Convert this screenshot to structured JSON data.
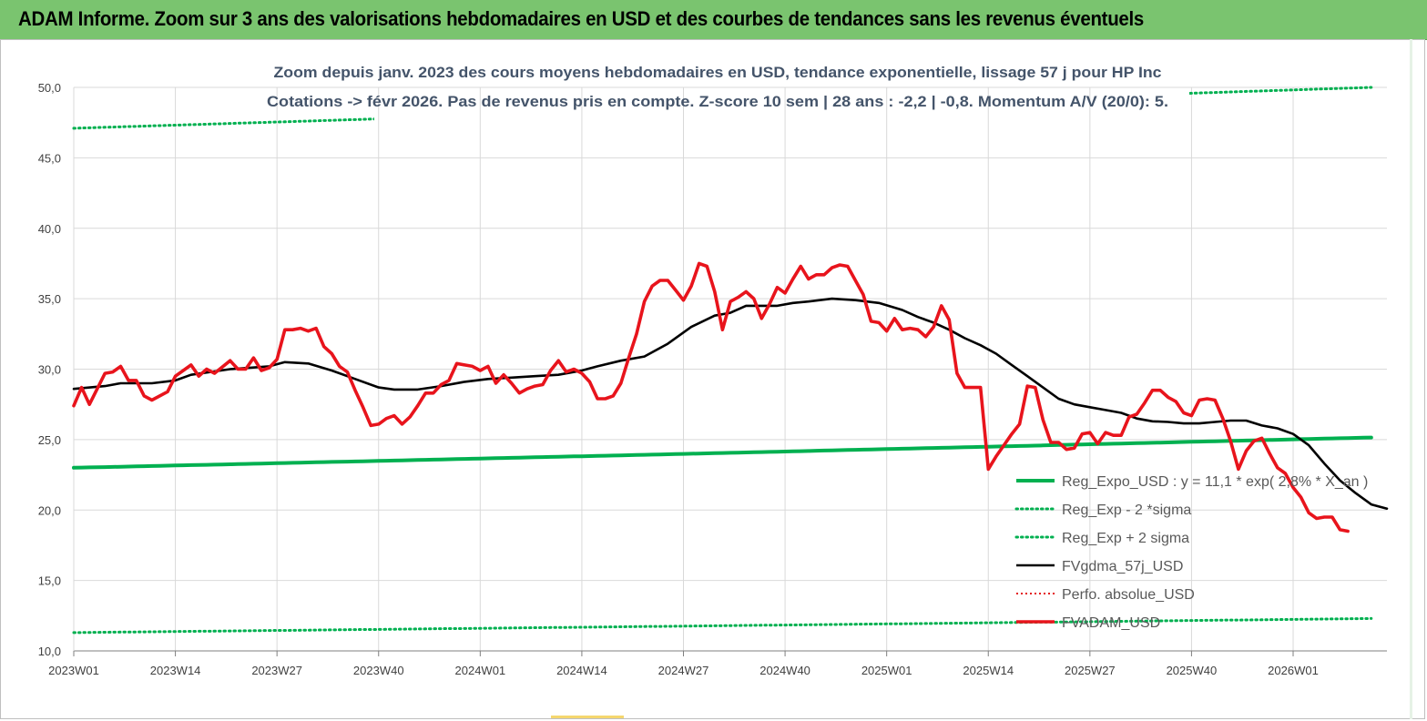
{
  "header": {
    "title": "ADAM Informe. Zoom sur 3 ans des valorisations hebdomadaires en USD et des courbes de tendances sans les revenus éventuels"
  },
  "colors": {
    "header_bg": "#7ac46f",
    "reg_expo": "#00b050",
    "sigma": "#00b050",
    "fvgdma": "#000000",
    "perfo": "#e41a1c",
    "fvadam": "#e8141c",
    "subtitle": "#44546a"
  },
  "chart_data": {
    "type": "line",
    "title_line1": "Zoom depuis janv. 2023 des cours moyens hebdomadaires en USD, tendance exponentielle, lissage 57 j pour HP Inc",
    "title_line2": "Cotations -> févr 2026.  Pas de revenus pris en compte. Z-score 10 sem  | 28 ans : -2,2 | -0,8. Momentum A/V (20/0): 5.",
    "ylim": [
      10,
      50
    ],
    "grid": true,
    "legend_position": "right",
    "y_ticks": [
      "10,0",
      "15,0",
      "20,0",
      "25,0",
      "30,0",
      "35,0",
      "40,0",
      "45,0",
      "50,0"
    ],
    "x_ticks": [
      "2023W01",
      "2023W14",
      "2023W27",
      "2023W40",
      "2024W01",
      "2024W14",
      "2024W27",
      "2024W40",
      "2025W01",
      "2025W14",
      "2025W27",
      "2025W40",
      "2026W01"
    ],
    "x_week_start": 0,
    "series": [
      {
        "name": "Reg_Expo_USD : y = 11,1 * exp( 2,8% * X_an )",
        "style": "solid-thick",
        "points": [
          [
            0,
            23.0
          ],
          [
            166,
            25.15
          ]
        ]
      },
      {
        "name": "Reg_Exp - 2 *sigma",
        "style": "dotted",
        "points": [
          [
            0,
            11.3
          ],
          [
            166,
            12.3
          ]
        ]
      },
      {
        "name": "Reg_Exp + 2 sigma",
        "style": "dotted",
        "points": [
          [
            0,
            47.1
          ],
          [
            166,
            50.0
          ]
        ]
      },
      {
        "name": "FVgdma_57j_USD",
        "style": "solid",
        "points": [
          [
            0,
            28.6
          ],
          [
            4,
            28.8
          ],
          [
            6,
            29.0
          ],
          [
            10,
            29.0
          ],
          [
            13,
            29.2
          ],
          [
            15,
            29.6
          ],
          [
            20,
            30.0
          ],
          [
            25,
            30.2
          ],
          [
            27,
            30.5
          ],
          [
            30,
            30.4
          ],
          [
            33,
            29.9
          ],
          [
            36,
            29.3
          ],
          [
            39,
            28.7
          ],
          [
            41,
            28.55
          ],
          [
            44,
            28.55
          ],
          [
            47,
            28.8
          ],
          [
            50,
            29.1
          ],
          [
            53,
            29.3
          ],
          [
            56,
            29.4
          ],
          [
            59,
            29.5
          ],
          [
            62,
            29.6
          ],
          [
            65,
            29.9
          ],
          [
            67,
            30.2
          ],
          [
            70,
            30.6
          ],
          [
            73,
            30.9
          ],
          [
            76,
            31.8
          ],
          [
            79,
            33.0
          ],
          [
            82,
            33.8
          ],
          [
            84,
            34.0
          ],
          [
            86,
            34.5
          ],
          [
            88,
            34.5
          ],
          [
            90,
            34.5
          ],
          [
            92,
            34.7
          ],
          [
            94,
            34.8
          ],
          [
            97,
            35.0
          ],
          [
            100,
            34.9
          ],
          [
            103,
            34.7
          ],
          [
            106,
            34.2
          ],
          [
            108,
            33.7
          ],
          [
            110,
            33.3
          ],
          [
            112,
            32.8
          ],
          [
            114,
            32.2
          ],
          [
            116,
            31.7
          ],
          [
            118,
            31.1
          ],
          [
            120,
            30.3
          ],
          [
            122,
            29.5
          ],
          [
            124,
            28.7
          ],
          [
            126,
            27.9
          ],
          [
            128,
            27.5
          ],
          [
            130,
            27.3
          ],
          [
            132,
            27.1
          ],
          [
            134,
            26.9
          ],
          [
            136,
            26.5
          ],
          [
            138,
            26.3
          ],
          [
            140,
            26.25
          ],
          [
            142,
            26.15
          ],
          [
            144,
            26.15
          ],
          [
            146,
            26.25
          ],
          [
            148,
            26.35
          ],
          [
            150,
            26.35
          ],
          [
            152,
            26.0
          ],
          [
            154,
            25.8
          ],
          [
            156,
            25.4
          ],
          [
            158,
            24.6
          ],
          [
            160,
            23.3
          ],
          [
            162,
            22.1
          ],
          [
            164,
            21.2
          ],
          [
            166,
            20.4
          ],
          [
            168,
            20.1
          ]
        ]
      },
      {
        "name": "Perfo. absolue_USD",
        "style": "dotted",
        "points": []
      },
      {
        "name": "FVADAM_USD",
        "style": "solid-thick",
        "points": [
          [
            0,
            27.4
          ],
          [
            1,
            28.7
          ],
          [
            2,
            27.5
          ],
          [
            4,
            29.7
          ],
          [
            5,
            29.8
          ],
          [
            6,
            30.2
          ],
          [
            7,
            29.2
          ],
          [
            8,
            29.2
          ],
          [
            9,
            28.1
          ],
          [
            10,
            27.8
          ],
          [
            12,
            28.4
          ],
          [
            13,
            29.5
          ],
          [
            15,
            30.3
          ],
          [
            16,
            29.5
          ],
          [
            17,
            30.0
          ],
          [
            18,
            29.7
          ],
          [
            20,
            30.6
          ],
          [
            21,
            30.0
          ],
          [
            22,
            30.0
          ],
          [
            23,
            30.8
          ],
          [
            24,
            29.9
          ],
          [
            25,
            30.1
          ],
          [
            26,
            30.7
          ],
          [
            27,
            32.8
          ],
          [
            28,
            32.8
          ],
          [
            29,
            32.9
          ],
          [
            30,
            32.7
          ],
          [
            31,
            32.9
          ],
          [
            32,
            31.6
          ],
          [
            33,
            31.1
          ],
          [
            34,
            30.2
          ],
          [
            35,
            29.8
          ],
          [
            36,
            28.5
          ],
          [
            37,
            27.3
          ],
          [
            38,
            26.0
          ],
          [
            39,
            26.1
          ],
          [
            40,
            26.5
          ],
          [
            41,
            26.7
          ],
          [
            42,
            26.1
          ],
          [
            43,
            26.6
          ],
          [
            44,
            27.4
          ],
          [
            45,
            28.3
          ],
          [
            46,
            28.3
          ],
          [
            47,
            28.9
          ],
          [
            48,
            29.2
          ],
          [
            49,
            30.4
          ],
          [
            50,
            30.3
          ],
          [
            51,
            30.2
          ],
          [
            52,
            29.9
          ],
          [
            53,
            30.2
          ],
          [
            54,
            29.0
          ],
          [
            55,
            29.6
          ],
          [
            56,
            29.0
          ],
          [
            57,
            28.3
          ],
          [
            58,
            28.6
          ],
          [
            59,
            28.8
          ],
          [
            60,
            28.9
          ],
          [
            61,
            29.9
          ],
          [
            62,
            30.6
          ],
          [
            63,
            29.8
          ],
          [
            64,
            30.0
          ],
          [
            65,
            29.7
          ],
          [
            66,
            29.1
          ],
          [
            67,
            27.9
          ],
          [
            68,
            27.9
          ],
          [
            69,
            28.1
          ],
          [
            70,
            29.0
          ],
          [
            71,
            30.8
          ],
          [
            72,
            32.5
          ],
          [
            73,
            34.8
          ],
          [
            74,
            35.9
          ],
          [
            75,
            36.3
          ],
          [
            76,
            36.3
          ],
          [
            77,
            35.6
          ],
          [
            78,
            34.9
          ],
          [
            79,
            35.9
          ],
          [
            80,
            37.5
          ],
          [
            81,
            37.3
          ],
          [
            82,
            35.5
          ],
          [
            83,
            32.8
          ],
          [
            84,
            34.8
          ],
          [
            85,
            35.1
          ],
          [
            86,
            35.5
          ],
          [
            87,
            35.0
          ],
          [
            88,
            33.6
          ],
          [
            89,
            34.6
          ],
          [
            90,
            35.8
          ],
          [
            91,
            35.4
          ],
          [
            92,
            36.4
          ],
          [
            93,
            37.3
          ],
          [
            94,
            36.4
          ],
          [
            95,
            36.7
          ],
          [
            96,
            36.7
          ],
          [
            97,
            37.2
          ],
          [
            98,
            37.4
          ],
          [
            99,
            37.3
          ],
          [
            100,
            36.3
          ],
          [
            101,
            35.3
          ],
          [
            102,
            33.4
          ],
          [
            103,
            33.3
          ],
          [
            104,
            32.7
          ],
          [
            105,
            33.6
          ],
          [
            106,
            32.8
          ],
          [
            107,
            32.9
          ],
          [
            108,
            32.8
          ],
          [
            109,
            32.3
          ],
          [
            110,
            33.0
          ],
          [
            111,
            34.5
          ],
          [
            112,
            33.5
          ],
          [
            113,
            29.7
          ],
          [
            114,
            28.7
          ],
          [
            115,
            28.7
          ],
          [
            116,
            28.7
          ],
          [
            117,
            22.9
          ],
          [
            118,
            23.8
          ],
          [
            119,
            24.6
          ],
          [
            120,
            25.4
          ],
          [
            121,
            26.1
          ],
          [
            122,
            28.8
          ],
          [
            123,
            28.7
          ],
          [
            124,
            26.4
          ],
          [
            125,
            24.8
          ],
          [
            126,
            24.8
          ],
          [
            127,
            24.3
          ],
          [
            128,
            24.4
          ],
          [
            129,
            25.4
          ],
          [
            130,
            25.5
          ],
          [
            131,
            24.7
          ],
          [
            132,
            25.5
          ],
          [
            133,
            25.3
          ],
          [
            134,
            25.3
          ],
          [
            135,
            26.6
          ],
          [
            136,
            26.8
          ],
          [
            137,
            27.6
          ],
          [
            138,
            28.5
          ],
          [
            139,
            28.5
          ],
          [
            140,
            28.0
          ],
          [
            141,
            27.7
          ],
          [
            142,
            26.9
          ],
          [
            143,
            26.7
          ],
          [
            144,
            27.8
          ],
          [
            145,
            27.9
          ],
          [
            146,
            27.8
          ],
          [
            147,
            26.5
          ],
          [
            148,
            24.9
          ],
          [
            149,
            22.9
          ],
          [
            150,
            24.2
          ],
          [
            151,
            24.9
          ],
          [
            152,
            25.1
          ],
          [
            153,
            24.0
          ],
          [
            154,
            23.0
          ],
          [
            155,
            22.6
          ],
          [
            156,
            21.6
          ],
          [
            157,
            20.9
          ],
          [
            158,
            19.8
          ],
          [
            159,
            19.4
          ],
          [
            160,
            19.5
          ],
          [
            161,
            19.5
          ],
          [
            162,
            18.6
          ],
          [
            163,
            18.5
          ]
        ]
      }
    ]
  }
}
